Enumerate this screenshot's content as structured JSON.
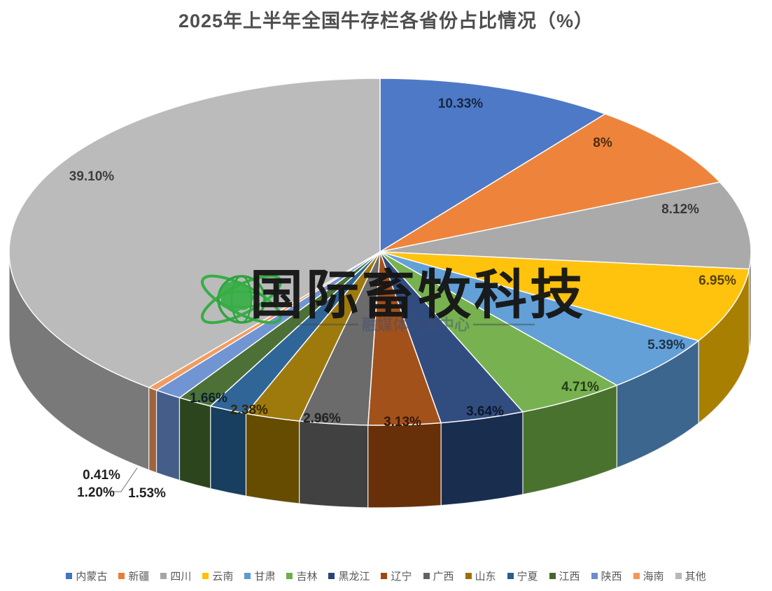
{
  "title": "2025年上半年全国牛存栏各省份占比情况（%）",
  "watermark": {
    "icon": "globe-orbit-icon",
    "brand": "国际畜牧科技",
    "subtitle": "融媒体信息中心"
  },
  "chart_data": {
    "type": "pie",
    "is_3d": true,
    "start_angle_deg": 0,
    "direction": "clockwise",
    "legend_position": "bottom",
    "title": "2025年上半年全国牛存栏各省份占比情况（%）",
    "series": [
      {
        "name": "内蒙古",
        "value": 10.33,
        "label": "10.33%",
        "color": "#4472C4"
      },
      {
        "name": "新疆",
        "value": 8,
        "label": "8%",
        "color": "#ED7D31"
      },
      {
        "name": "四川",
        "value": 8.12,
        "label": "8.12%",
        "color": "#A5A5A5"
      },
      {
        "name": "云南",
        "value": 6.95,
        "label": "6.95%",
        "color": "#FFC000"
      },
      {
        "name": "甘肃",
        "value": 5.39,
        "label": "5.39%",
        "color": "#5B9BD5"
      },
      {
        "name": "吉林",
        "value": 4.71,
        "label": "4.71%",
        "color": "#70AD47"
      },
      {
        "name": "黑龙江",
        "value": 3.64,
        "label": "3.64%",
        "color": "#264478"
      },
      {
        "name": "辽宁",
        "value": 3.13,
        "label": "3.13%",
        "color": "#9E480E"
      },
      {
        "name": "广西",
        "value": 2.96,
        "label": "2.96%",
        "color": "#636363"
      },
      {
        "name": "山东",
        "value": 2.38,
        "label": "2.38%",
        "color": "#997300"
      },
      {
        "name": "宁夏",
        "value": 1.66,
        "label": "1.66%",
        "color": "#255E91"
      },
      {
        "name": "江西",
        "value": 1.53,
        "label": "1.53%",
        "color": "#43682B"
      },
      {
        "name": "陕西",
        "value": 1.2,
        "label": "1.20%",
        "color": "#698ED0"
      },
      {
        "name": "海南",
        "value": 0.41,
        "label": "0.41%",
        "color": "#F1975A"
      },
      {
        "name": "其他",
        "value": 39.1,
        "label": "39.10%",
        "color": "#B7B7B7"
      }
    ]
  }
}
